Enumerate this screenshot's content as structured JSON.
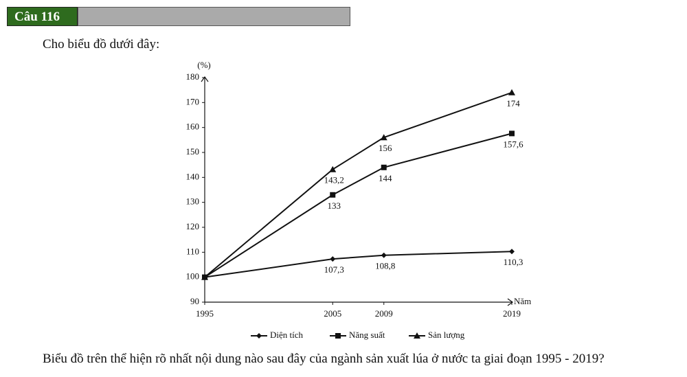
{
  "header": {
    "label": "Câu 116"
  },
  "intro": "Cho biểu đồ dưới đây:",
  "chart_data": {
    "type": "line",
    "y_label": "(%)",
    "x_label": "Năm",
    "x": [
      1995,
      2005,
      2009,
      2019
    ],
    "xlim": [
      1995,
      2019
    ],
    "xticks": [
      1995,
      2005,
      2009,
      2019
    ],
    "ylim": [
      90,
      180
    ],
    "yticks": [
      90,
      100,
      110,
      120,
      130,
      140,
      150,
      160,
      170,
      180
    ],
    "series": [
      {
        "name": "Diện tích",
        "color": "#111111",
        "marker": "diamond",
        "values": [
          100,
          107.3,
          108.8,
          110.3
        ],
        "value_labels": [
          null,
          "107,3",
          "108,8",
          "110,3"
        ]
      },
      {
        "name": "Năng suất",
        "color": "#111111",
        "marker": "square",
        "values": [
          100,
          133,
          144,
          157.6
        ],
        "value_labels": [
          null,
          "133",
          "144",
          "157,6"
        ]
      },
      {
        "name": "Sản lượng",
        "color": "#111111",
        "marker": "triangle",
        "values": [
          100,
          143.2,
          156,
          174
        ],
        "value_labels": [
          null,
          "143,2",
          "156",
          "174"
        ]
      }
    ]
  },
  "question": "Biểu đồ trên thể hiện rõ nhất nội dung nào sau đây của ngành sản xuất lúa ở nước ta giai đoạn 1995 - 2019?"
}
